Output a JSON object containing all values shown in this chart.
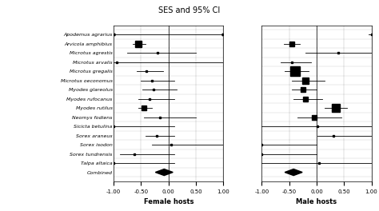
{
  "title": "SES and 95% CI",
  "xlabel_left": "Female hosts",
  "xlabel_right": "Male hosts",
  "species": [
    "Apodemus agrarius",
    "Arvicola amphibius",
    "Microtus agrestis",
    "Microtus arvalis",
    "Microtus gregalis",
    "Microtus oeconomus",
    "Myodes glareolus",
    "Myodes rufocanus",
    "Myodes rutilus",
    "Neomys fodiens",
    "Sicicta betulina",
    "Sorex araneus",
    "Sorex isodon",
    "Sorex tundrensis",
    "Talpa altaica",
    "Combined"
  ],
  "female": {
    "ses": [
      null,
      -0.55,
      -0.2,
      -0.95,
      -0.4,
      -0.3,
      -0.28,
      -0.35,
      -0.45,
      -0.15,
      -1.0,
      -0.22,
      0.05,
      -0.62,
      -1.0,
      -0.08
    ],
    "ci_lo": [
      null,
      -0.65,
      -0.75,
      -1.0,
      -0.58,
      -0.5,
      -0.48,
      -0.55,
      -0.55,
      -0.45,
      -1.0,
      -0.42,
      -0.3,
      -0.88,
      -1.0,
      -0.18
    ],
    "ci_hi": [
      null,
      -0.42,
      0.5,
      1.0,
      -0.1,
      0.1,
      0.15,
      0.1,
      -0.3,
      0.5,
      0.1,
      0.1,
      1.0,
      0.1,
      0.1,
      0.02
    ],
    "size": [
      null,
      12,
      4,
      4,
      4,
      4,
      4,
      4,
      10,
      4,
      4,
      4,
      4,
      4,
      4,
      14
    ]
  },
  "male": {
    "ses": [
      1.0,
      -0.45,
      0.4,
      -0.45,
      -0.4,
      -0.2,
      -0.25,
      -0.2,
      0.35,
      -0.05,
      0.02,
      0.3,
      -1.0,
      -1.0,
      0.05,
      -0.42
    ],
    "ci_lo": [
      0.95,
      -0.6,
      -0.2,
      -0.65,
      -0.58,
      -0.45,
      -0.45,
      -0.42,
      0.15,
      -0.35,
      -1.0,
      0.02,
      -1.0,
      -1.0,
      -1.0,
      -0.52
    ],
    "ci_hi": [
      1.0,
      -0.3,
      1.0,
      -0.1,
      -0.15,
      0.15,
      0.0,
      0.1,
      0.55,
      0.45,
      1.0,
      1.0,
      0.0,
      0.0,
      1.0,
      -0.3
    ],
    "size": [
      4,
      10,
      4,
      4,
      16,
      12,
      8,
      8,
      14,
      8,
      4,
      4,
      4,
      4,
      4,
      14
    ]
  },
  "xlim": [
    -1.0,
    1.0
  ],
  "xticks": [
    -1.0,
    -0.5,
    0.0,
    0.5,
    1.0
  ]
}
